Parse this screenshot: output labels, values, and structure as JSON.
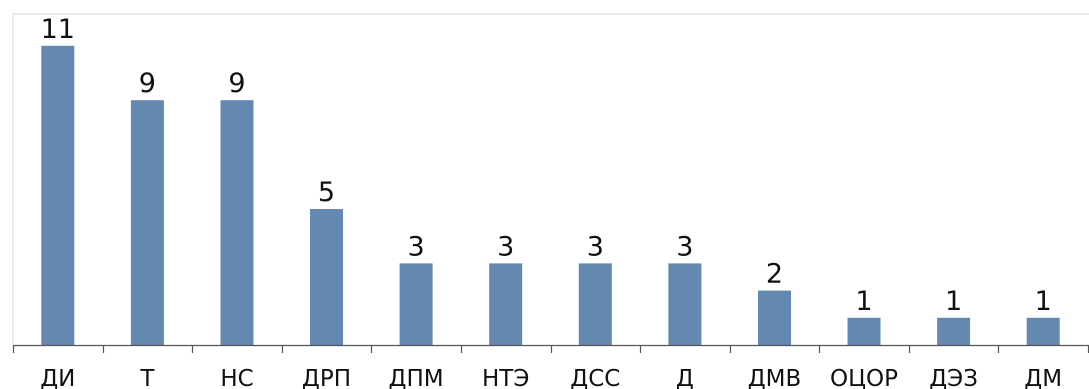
{
  "chart_data": {
    "type": "bar",
    "categories": [
      "ДИ",
      "Т",
      "НС",
      "ДРП",
      "ДПМ",
      "НТЭ",
      "ДСС",
      "Д",
      "ДМВ",
      "ОЦОР",
      "ДЭЗ",
      "ДМ"
    ],
    "values": [
      11,
      9,
      9,
      5,
      3,
      3,
      3,
      3,
      2,
      1,
      1,
      1
    ],
    "data_labels": [
      "11",
      "9",
      "9",
      "5",
      "3",
      "3",
      "3",
      "3",
      "2",
      "1",
      "1",
      "1"
    ],
    "ylim": [
      0,
      11
    ],
    "grid": false,
    "legend": "none",
    "colors": {
      "bar": "#6389b0",
      "axis": "#555555",
      "frame": "#d8d8d8",
      "text": "#111111"
    }
  }
}
